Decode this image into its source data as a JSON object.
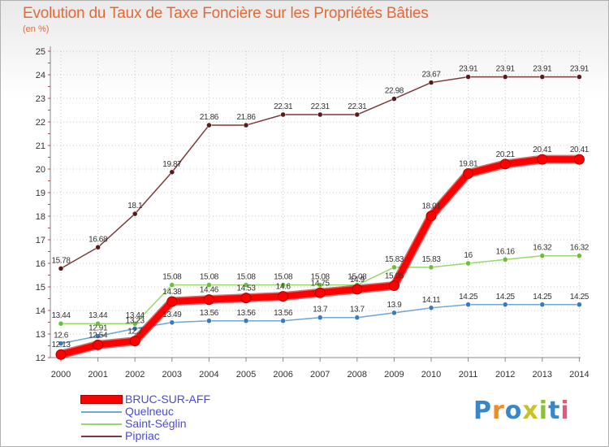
{
  "title": "Evolution du Taux de Taxe Foncière sur les Propriétés Bâties",
  "subtitle": "(en %)",
  "logo": {
    "text": "Proxiti",
    "colors": [
      "#3a87c8",
      "#f08a24",
      "#3a87c8",
      "#c9c224",
      "#8bbf3a",
      "#3a87c8",
      "#e05a7a"
    ]
  },
  "chart_data": {
    "type": "line",
    "title": "Evolution du Taux de Taxe Foncière sur les Propriétés Bâties",
    "ylabel": "(en %)",
    "xlabel": "",
    "x": [
      "2000",
      "2001",
      "2002",
      "2003",
      "2004",
      "2005",
      "2006",
      "2007",
      "2008",
      "2009",
      "2010",
      "2011",
      "2012",
      "2013",
      "2014"
    ],
    "ylim": [
      12,
      25
    ],
    "yticks": [
      "12",
      "13",
      "14",
      "15",
      "16",
      "17",
      "18",
      "19",
      "20",
      "21",
      "22",
      "23",
      "24",
      "25"
    ],
    "legend_position": "bottom-left",
    "series": [
      {
        "name": "Pipriac",
        "color": "#7b3b3b",
        "dot": "#5a1a1a",
        "values": [
          15.78,
          16.68,
          18.1,
          19.87,
          21.86,
          21.86,
          22.31,
          22.31,
          22.31,
          22.98,
          23.67,
          23.91,
          23.91,
          23.91,
          23.91
        ],
        "labels": [
          "15.78",
          "16.68",
          "18.1",
          "19.87",
          "21.86",
          "21.86",
          "22.31",
          "22.31",
          "22.31",
          "22.98",
          "23.67",
          "23.91",
          "23.91",
          "23.91",
          "23.91"
        ]
      },
      {
        "name": "Saint-Séglin",
        "color": "#98d86a",
        "dot": "#6abf3a",
        "values": [
          13.44,
          13.44,
          13.44,
          15.08,
          15.08,
          15.08,
          15.08,
          15.08,
          15.08,
          15.83,
          15.83,
          16,
          16.16,
          16.32,
          16.32
        ],
        "labels": [
          "13.44",
          "13.44",
          "13.44",
          "15.08",
          "15.08",
          "15.08",
          "15.08",
          "15.08",
          "15.08",
          "15.83",
          "15.83",
          "16",
          "16.16",
          "16.32",
          "16.32"
        ]
      },
      {
        "name": "Quelneuc",
        "color": "#6ea6d6",
        "dot": "#3a7ab8",
        "values": [
          12.6,
          12.91,
          13.23,
          13.49,
          13.56,
          13.56,
          13.56,
          13.7,
          13.7,
          13.9,
          14.11,
          14.25,
          14.25,
          14.25,
          14.25
        ],
        "labels": [
          "12.6",
          "12.91",
          "13.23",
          "13.49",
          "13.56",
          "13.56",
          "13.56",
          "13.7",
          "13.7",
          "13.9",
          "14.11",
          "14.25",
          "14.25",
          "14.25",
          "14.25"
        ]
      },
      {
        "name": "BRUC-SUR-AFF",
        "color": "#ff0000",
        "dot": "#ff0000",
        "values": [
          12.13,
          12.54,
          12.7,
          14.38,
          14.46,
          14.53,
          14.6,
          14.75,
          14.9,
          15.05,
          18.01,
          19.81,
          20.21,
          20.41,
          20.41
        ],
        "labels": [
          "12.13",
          "12.54",
          "12.7",
          "14.38",
          "14.46",
          "14.53",
          "14.6",
          "14.75",
          "14.9",
          "15.05",
          "18.01",
          "19.81",
          "20.21",
          "20.41",
          "20.41"
        ]
      }
    ],
    "legend_order": [
      "BRUC-SUR-AFF",
      "Quelneuc",
      "Saint-Séglin",
      "Pipriac"
    ]
  }
}
